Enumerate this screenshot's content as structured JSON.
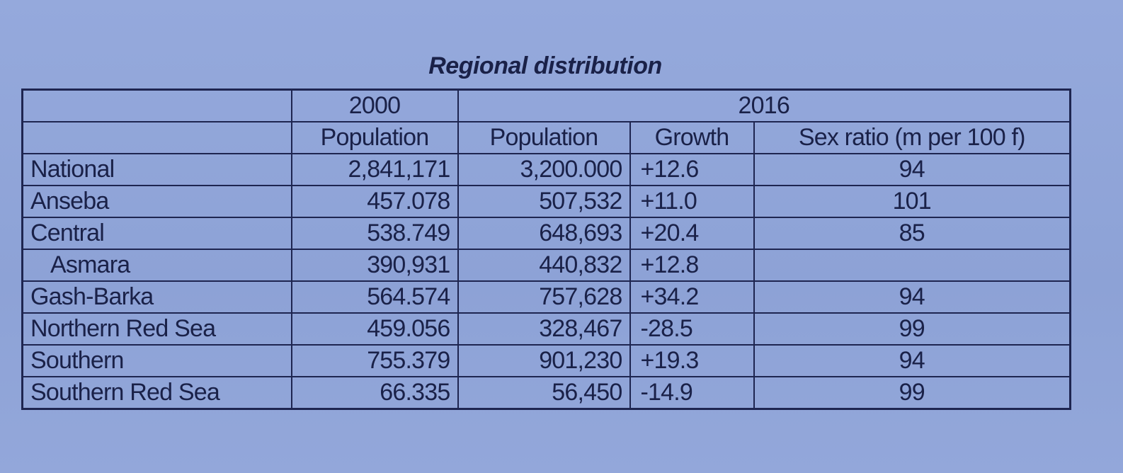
{
  "title": "Regional distribution",
  "table": {
    "header": [
      [
        "2000",
        "2016"
      ],
      [
        "Population",
        "Population",
        "Growth",
        "Sex ratio (m per 100 f)"
      ]
    ],
    "rows": [
      [
        "National",
        "2,841,171",
        "3,200.000",
        "+12.6",
        "94"
      ],
      [
        "Anseba",
        "457.078",
        "507,532",
        "+11.0",
        "101"
      ],
      [
        "Central",
        "538.749",
        "648,693",
        "+20.4",
        "85"
      ],
      [
        "Asmara",
        "390,931",
        "440,832",
        "+12.8",
        null
      ],
      [
        "Gash-Barka",
        "564.574",
        "757,628",
        "+34.2",
        "94"
      ],
      [
        "Northern Red Sea",
        "459.056",
        "328,467",
        "-28.5",
        "99"
      ],
      [
        "Southern",
        "755.379",
        "901,230",
        "+19.3",
        "94"
      ],
      [
        "Southern Red Sea",
        "66.335",
        "56,450",
        "-14.9",
        "99"
      ]
    ]
  }
}
